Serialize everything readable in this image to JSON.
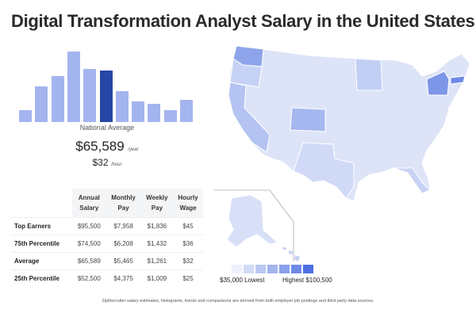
{
  "title": "Digital Transformation Analyst Salary in the United States",
  "histogram": {
    "relative_heights": [
      15,
      45,
      58,
      89,
      67,
      65,
      39,
      26,
      23,
      15,
      28
    ],
    "highlight_index": 5,
    "bar_color": "#a4b4ef",
    "highlight_color": "#2747a6"
  },
  "national": {
    "label": "National Average",
    "annual": "$65,589",
    "annual_unit": "/year",
    "hourly": "$32",
    "hourly_unit": "/hour"
  },
  "table": {
    "headers": [
      [
        "Annual",
        "Salary"
      ],
      [
        "Monthly",
        "Pay"
      ],
      [
        "Weekly",
        "Pay"
      ],
      [
        "Hourly",
        "Wage"
      ]
    ],
    "rows": [
      {
        "label": "Top Earners",
        "values": [
          "$95,500",
          "$7,958",
          "$1,836",
          "$45"
        ]
      },
      {
        "label": "75th Percentile",
        "values": [
          "$74,500",
          "$6,208",
          "$1,432",
          "$36"
        ]
      },
      {
        "label": "Average",
        "values": [
          "$65,589",
          "$5,465",
          "$1,261",
          "$32"
        ]
      },
      {
        "label": "25th Percentile",
        "values": [
          "$52,500",
          "$4,375",
          "$1,009",
          "$25"
        ]
      }
    ]
  },
  "legend": {
    "colors": [
      "#eef1fb",
      "#d3dcf7",
      "#bac8f3",
      "#a3b5ef",
      "#8aa1eb",
      "#6f8ae6",
      "#4d6fe0"
    ],
    "low_label": "$35,000 Lowest",
    "high_label": "Highest $100,500"
  },
  "footer": "ZipRecruiter salary estimates, histograms, trends and comparisons are derived from both employer job postings and third party data sources."
}
